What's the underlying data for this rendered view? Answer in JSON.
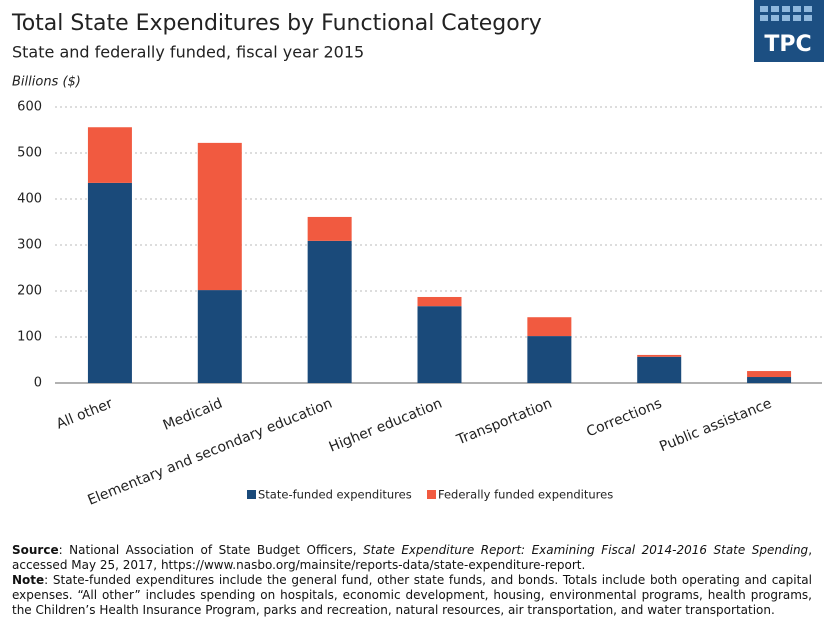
{
  "chart_data": {
    "type": "stacked_bar",
    "title": "Total State Expenditures by Functional Category",
    "subtitle": "State and federally funded, fiscal year 2015",
    "y_label": "Billions ($)",
    "categories": [
      "All other",
      "Medicaid",
      "Elementary and secondary education",
      "Higher education",
      "Transportation",
      "Corrections",
      "Public assistance"
    ],
    "series": [
      {
        "name": "State-funded expenditures",
        "color": "#1a4a7a",
        "values": [
          435,
          202,
          309,
          167,
          102,
          57,
          13
        ]
      },
      {
        "name": "Federally funded expenditures",
        "color": "#f15a40",
        "values": [
          121,
          320,
          52,
          20,
          41,
          4,
          13
        ]
      }
    ],
    "ylim": [
      0,
      600
    ],
    "yticks": [
      0,
      100,
      200,
      300,
      400,
      500,
      600
    ],
    "grid": true,
    "legend": "bottom"
  },
  "logo": "TPC",
  "notes": {
    "source_label": "Source",
    "source_before": ": National Association of State Budget Officers, ",
    "source_title": "State Expenditure Report: Examining Fiscal 2014-2016 State Spending",
    "source_after": ", accessed May 25, 2017, https://www.nasbo.org/mainsite/reports-data/state-expenditure-report.",
    "note_label": "Note",
    "note_text": ": State-funded expenditures include the general fund, other state funds, and bonds. Totals include both operating and capital expenses. “All other” includes spending on hospitals, economic development, housing, environmental programs, health programs, the Children’s Health Insurance Program, parks and recreation, natural resources, air transportation, and water transportation."
  }
}
